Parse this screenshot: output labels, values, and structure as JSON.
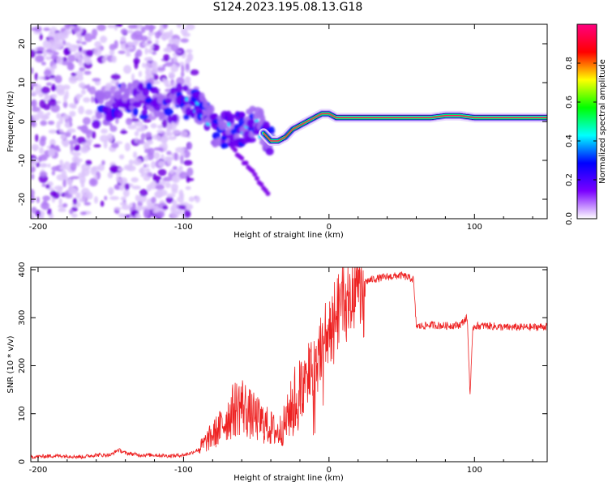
{
  "title": "S124.2023.195.08.13.G18",
  "chart_data": [
    {
      "type": "heatmap",
      "title": "S124.2023.195.08.13.G18",
      "xlabel": "Height of straight line (km)",
      "ylabel": "Frequency (Hz)",
      "xlim": [
        -205,
        150
      ],
      "ylim": [
        -25,
        25
      ],
      "xticks": [
        -200,
        -100,
        0,
        100
      ],
      "yticks": [
        20,
        10,
        0,
        -10,
        -20
      ],
      "grid": false,
      "ridge": {
        "x": [
          -155,
          -150,
          -140,
          -130,
          -120,
          -110,
          -100,
          -95,
          -90,
          -85,
          -80,
          -75,
          -70,
          -65,
          -60,
          -55,
          -50,
          -45,
          -40,
          -35,
          -30,
          -25,
          -20,
          -15,
          -10,
          -5,
          0,
          5,
          10,
          20,
          30,
          40,
          50,
          60,
          70,
          80,
          90,
          100,
          110,
          120,
          130,
          140,
          150
        ],
        "y": [
          3,
          4,
          7,
          5,
          6,
          4,
          5,
          5,
          4,
          2,
          -1,
          -3,
          -2,
          -2,
          -2,
          -1,
          0,
          -3,
          -5,
          -5,
          -4,
          -2,
          -1,
          0,
          1,
          2,
          2,
          1,
          1,
          1,
          1,
          1,
          1,
          1,
          1,
          1.5,
          1.5,
          1,
          1,
          1,
          1,
          1,
          1
        ]
      },
      "colorbar": {
        "label": "Normalized spectral amplitude",
        "ticks": [
          0.0,
          0.2,
          0.4,
          0.6,
          0.8
        ],
        "range": [
          0,
          1
        ],
        "colors": [
          "#ffffff",
          "#7a00ff",
          "#0000ff",
          "#00ffff",
          "#00ff00",
          "#ffff00",
          "#ff0000",
          "#ff0080"
        ]
      }
    },
    {
      "type": "line",
      "xlabel": "Height of straight line (km)",
      "ylabel": "SNR (10 * v/v)",
      "xlim": [
        -205,
        150
      ],
      "ylim": [
        0,
        405
      ],
      "xticks": [
        -200,
        -100,
        0,
        100
      ],
      "yticks": [
        0,
        100,
        200,
        300,
        400
      ],
      "grid": false,
      "series": [
        {
          "color": "#ee2222",
          "x": [
            -205,
            -190,
            -180,
            -170,
            -160,
            -150,
            -145,
            -140,
            -130,
            -120,
            -110,
            -100,
            -95,
            -90,
            -85,
            -80,
            -75,
            -70,
            -65,
            -60,
            -55,
            -50,
            -45,
            -40,
            -35,
            -30,
            -25,
            -20,
            -15,
            -10,
            -5,
            0,
            5,
            10,
            15,
            20,
            25,
            30,
            40,
            50,
            58,
            60,
            62,
            70,
            80,
            90,
            95,
            97,
            99,
            100,
            110,
            120,
            130,
            140,
            150
          ],
          "y": [
            10,
            12,
            12,
            10,
            14,
            14,
            25,
            18,
            14,
            14,
            12,
            14,
            18,
            25,
            40,
            55,
            70,
            90,
            110,
            120,
            100,
            90,
            80,
            70,
            60,
            80,
            120,
            140,
            170,
            200,
            250,
            290,
            310,
            330,
            350,
            360,
            375,
            380,
            385,
            388,
            380,
            283,
            282,
            285,
            283,
            285,
            300,
            140,
            280,
            283,
            283,
            280,
            280,
            280,
            282
          ]
        }
      ]
    }
  ]
}
